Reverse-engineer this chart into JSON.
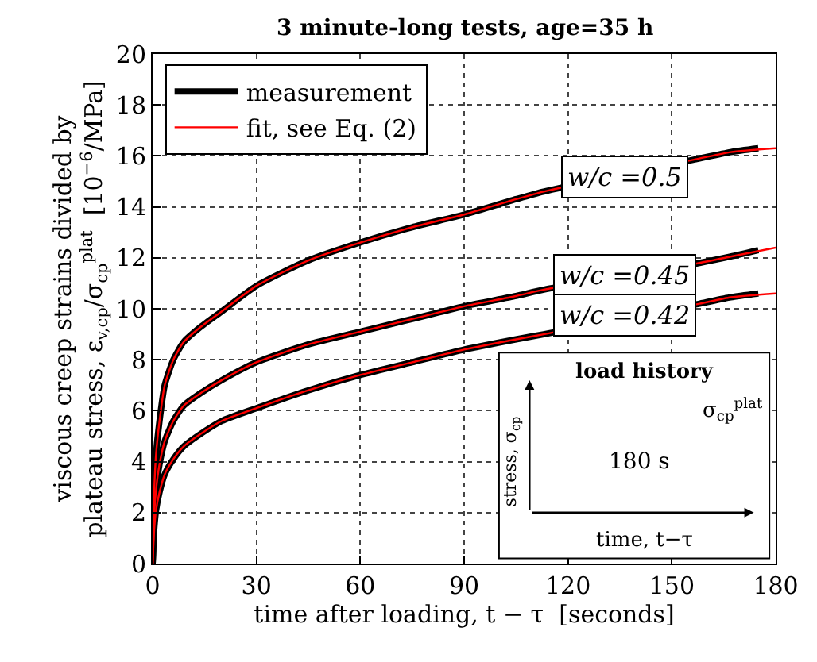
{
  "chart_data": {
    "type": "line",
    "title": "3 minute-long tests, age=35 h",
    "xlabel": "time after loading, t − τ  [seconds]",
    "ylabel": "viscous creep strains divided by\nplateau stress, ε$_{v,cp}$/σ$_{cp}$$^{plat}$  [10$^{−6}$/MPa]",
    "xlim": [
      0,
      180
    ],
    "xticks": [
      0,
      30,
      60,
      90,
      120,
      150,
      180
    ],
    "ylim": [
      0,
      20
    ],
    "yticks": [
      0,
      2,
      4,
      6,
      8,
      10,
      12,
      14,
      16,
      18,
      20
    ],
    "grid": true,
    "legend": "top left",
    "marker": "none",
    "line_style": "solid",
    "series": [
      {
        "name": "measurement",
        "color": "#000000",
        "x": [
          0,
          0.5,
          1,
          2,
          3.5,
          6,
          9,
          14,
          20,
          30,
          45,
          60,
          75,
          90,
          105,
          113,
          158,
          167,
          175
        ],
        "values": [
          0,
          3.0,
          4.3,
          5.6,
          7.0,
          8.0,
          8.7,
          9.3,
          9.9,
          10.9,
          11.9,
          12.6,
          13.2,
          13.7,
          14.3,
          14.6,
          15.9,
          16.15,
          16.3
        ]
      },
      {
        "color": "#000000",
        "x": [
          0,
          0.5,
          1,
          2,
          3.5,
          6,
          9,
          14,
          20,
          30,
          45,
          60,
          75,
          90,
          105,
          113,
          158,
          167,
          175
        ],
        "values": [
          0,
          2.0,
          2.9,
          3.9,
          4.8,
          5.6,
          6.2,
          6.7,
          7.2,
          7.9,
          8.6,
          9.1,
          9.6,
          10.1,
          10.5,
          10.75,
          11.8,
          12.05,
          12.3
        ]
      },
      {
        "color": "#000000",
        "x": [
          0,
          0.5,
          1,
          2,
          3.5,
          6,
          9,
          14,
          20,
          30,
          45,
          60,
          75,
          90,
          105,
          113,
          158,
          167,
          175
        ],
        "values": [
          0,
          1.4,
          2.1,
          2.8,
          3.5,
          4.1,
          4.6,
          5.1,
          5.6,
          6.1,
          6.8,
          7.4,
          7.9,
          8.4,
          8.8,
          9.0,
          10.2,
          10.45,
          10.6
        ]
      },
      {
        "name": "fit, see Eq. (2)",
        "color": "#ff0000",
        "x": [
          0,
          0.5,
          1,
          2,
          3.5,
          6,
          9,
          14,
          20,
          30,
          45,
          60,
          75,
          90,
          105,
          113,
          158,
          167,
          180
        ],
        "values": [
          0,
          3.0,
          4.3,
          5.6,
          7.0,
          8.0,
          8.7,
          9.3,
          9.9,
          10.9,
          11.9,
          12.6,
          13.2,
          13.7,
          14.3,
          14.6,
          15.9,
          16.15,
          16.3
        ]
      },
      {
        "color": "#ff0000",
        "x": [
          0,
          0.5,
          1,
          2,
          3.5,
          6,
          9,
          14,
          20,
          30,
          45,
          60,
          75,
          90,
          105,
          113,
          158,
          167,
          180
        ],
        "values": [
          0,
          2.0,
          2.9,
          3.9,
          4.8,
          5.6,
          6.2,
          6.7,
          7.2,
          7.9,
          8.6,
          9.1,
          9.6,
          10.1,
          10.5,
          10.75,
          11.8,
          12.05,
          12.4
        ]
      },
      {
        "color": "#ff0000",
        "x": [
          0,
          0.5,
          1,
          2,
          3.5,
          6,
          9,
          14,
          20,
          30,
          45,
          60,
          75,
          90,
          105,
          113,
          158,
          167,
          180
        ],
        "values": [
          0,
          1.4,
          2.1,
          2.8,
          3.5,
          4.1,
          4.6,
          5.1,
          5.6,
          6.1,
          6.8,
          7.4,
          7.9,
          8.4,
          8.8,
          9.0,
          10.2,
          10.45,
          10.6
        ]
      }
    ],
    "annotations": [
      "w/c =0.5",
      "w/c =0.45",
      "w/c =0.42",
      "load history",
      "stress, σ$_{cp}$",
      "σ$_{cp}$$^{plat}$",
      "180 s",
      "time, t−τ"
    ]
  }
}
